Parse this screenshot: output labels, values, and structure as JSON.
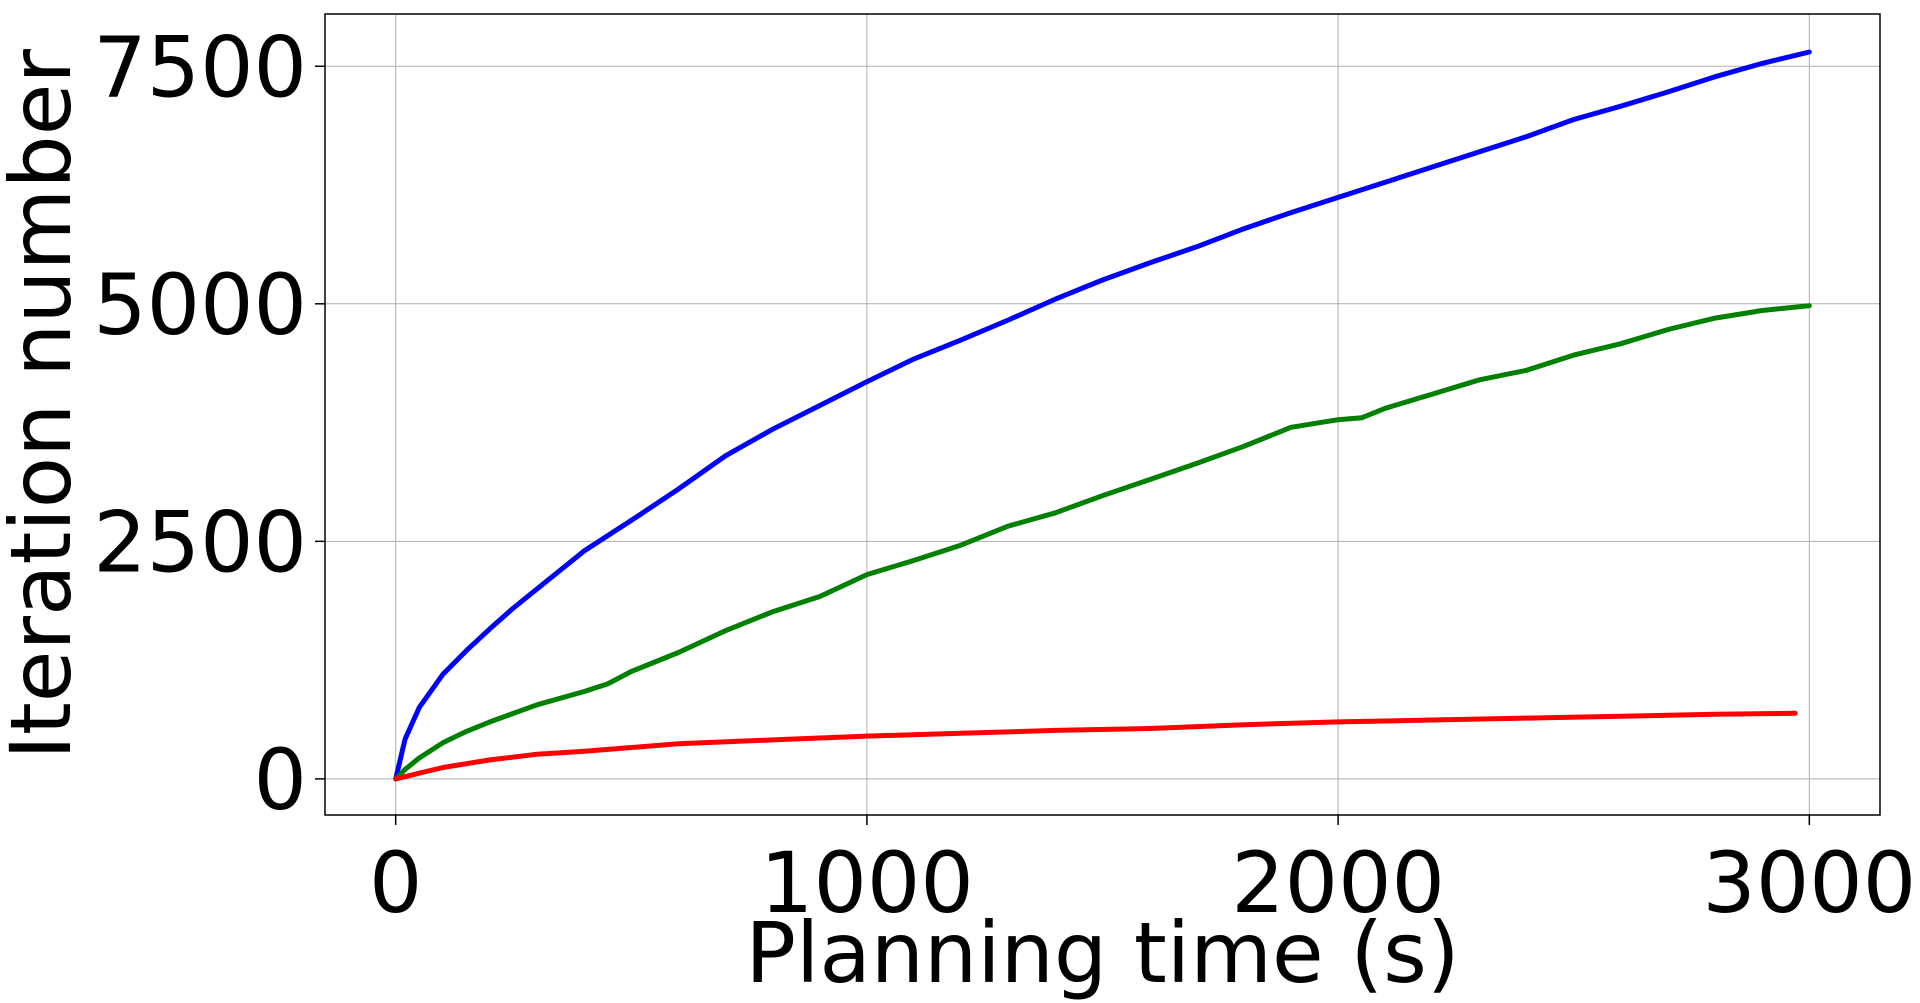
{
  "chart_data": {
    "type": "line",
    "xlabel": "Planning time (s)",
    "ylabel": "Iteration number",
    "xlim": [
      -150,
      3150
    ],
    "ylim": [
      -380,
      8050
    ],
    "xticks": [
      {
        "value": 0,
        "label": "0"
      },
      {
        "value": 1000,
        "label": "1000"
      },
      {
        "value": 2000,
        "label": "2000"
      },
      {
        "value": 3000,
        "label": "3000"
      }
    ],
    "yticks": [
      {
        "value": 0,
        "label": "0"
      },
      {
        "value": 2500,
        "label": "2500"
      },
      {
        "value": 5000,
        "label": "5000"
      },
      {
        "value": 7500,
        "label": "7500"
      }
    ],
    "grid": true,
    "series": [
      {
        "color": "#0000ff",
        "x": [
          0,
          20,
          50,
          100,
          150,
          200,
          250,
          300,
          350,
          400,
          500,
          600,
          700,
          800,
          900,
          1000,
          1100,
          1200,
          1300,
          1400,
          1500,
          1600,
          1700,
          1800,
          1900,
          2000,
          2100,
          2200,
          2300,
          2400,
          2500,
          2600,
          2700,
          2800,
          2900,
          3000
        ],
        "y": [
          0,
          420,
          750,
          1100,
          1350,
          1580,
          1800,
          2000,
          2200,
          2400,
          2720,
          3050,
          3400,
          3680,
          3930,
          4180,
          4420,
          4620,
          4830,
          5050,
          5250,
          5430,
          5600,
          5790,
          5960,
          6120,
          6280,
          6440,
          6600,
          6760,
          6940,
          7080,
          7230,
          7390,
          7530,
          7650
        ]
      },
      {
        "color": "#008000",
        "x": [
          0,
          20,
          50,
          100,
          150,
          200,
          300,
          400,
          450,
          500,
          600,
          700,
          800,
          900,
          1000,
          1100,
          1200,
          1300,
          1400,
          1500,
          1600,
          1700,
          1800,
          1900,
          2000,
          2050,
          2100,
          2200,
          2300,
          2400,
          2500,
          2600,
          2700,
          2800,
          2900,
          3000
        ],
        "y": [
          0,
          100,
          220,
          380,
          500,
          600,
          780,
          920,
          1000,
          1130,
          1330,
          1560,
          1760,
          1920,
          2150,
          2300,
          2460,
          2660,
          2800,
          2980,
          3150,
          3320,
          3500,
          3700,
          3780,
          3800,
          3900,
          4050,
          4200,
          4300,
          4460,
          4580,
          4730,
          4850,
          4930,
          4980
        ]
      },
      {
        "color": "#ff0000",
        "x": [
          0,
          50,
          100,
          150,
          200,
          300,
          400,
          500,
          600,
          800,
          1000,
          1200,
          1400,
          1600,
          1800,
          2000,
          2200,
          2400,
          2600,
          2800,
          2970
        ],
        "y": [
          0,
          60,
          120,
          160,
          200,
          260,
          290,
          330,
          370,
          410,
          450,
          480,
          510,
          530,
          570,
          600,
          620,
          640,
          660,
          680,
          690
        ]
      }
    ]
  }
}
